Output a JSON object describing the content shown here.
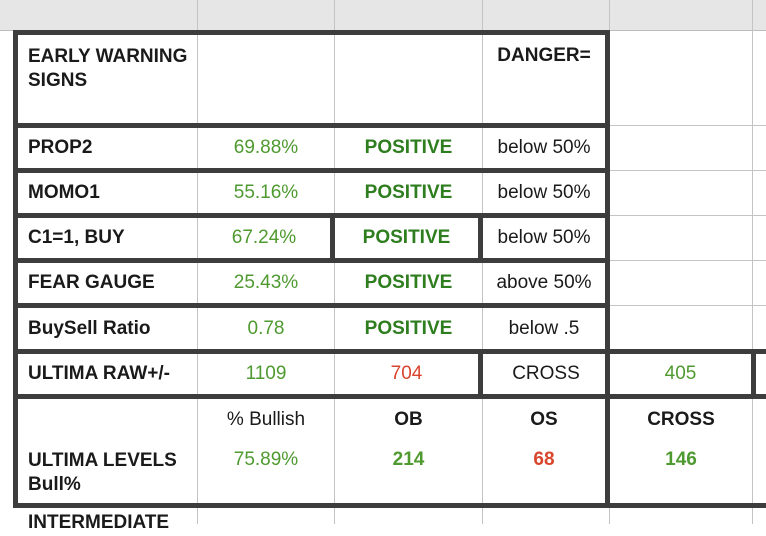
{
  "sheet": {
    "rows": [
      {
        "label": "EARLY WARNING SIGNS",
        "value": "",
        "status": "",
        "threshold": "DANGER="
      },
      {
        "label": "PROP2",
        "value": "69.88%",
        "status": "POSITIVE",
        "threshold": "below 50%"
      },
      {
        "label": "MOMO1",
        "value": "55.16%",
        "status": "POSITIVE",
        "threshold": "below 50%"
      },
      {
        "label": "C1=1, BUY",
        "value": "67.24%",
        "status": "POSITIVE",
        "threshold": "below 50%"
      },
      {
        "label": "FEAR GAUGE",
        "value": "25.43%",
        "status": "POSITIVE",
        "threshold": "above 50%"
      },
      {
        "label": "BuySell Ratio",
        "value": "0.78",
        "status": "POSITIVE",
        "threshold": "below .5"
      }
    ],
    "raw": {
      "label": "ULTIMA RAW+/-",
      "v1": "1109",
      "v2": "704",
      "cross_label": "CROSS",
      "cross_value": "405"
    },
    "levels_header": {
      "bullish": "% Bullish",
      "ob": "OB",
      "os": "OS",
      "cross": "CROSS"
    },
    "levels": {
      "label": "ULTIMA LEVELS Bull%",
      "bullish": "75.89%",
      "ob": "214",
      "os": "68",
      "cross": "146"
    },
    "next_row_label": "INTERMEDIATE"
  },
  "colors": {
    "positive": "#2e7d1e",
    "value_green": "#4f9a30",
    "negative": "#d9452c",
    "border": "#3d3d3d"
  }
}
